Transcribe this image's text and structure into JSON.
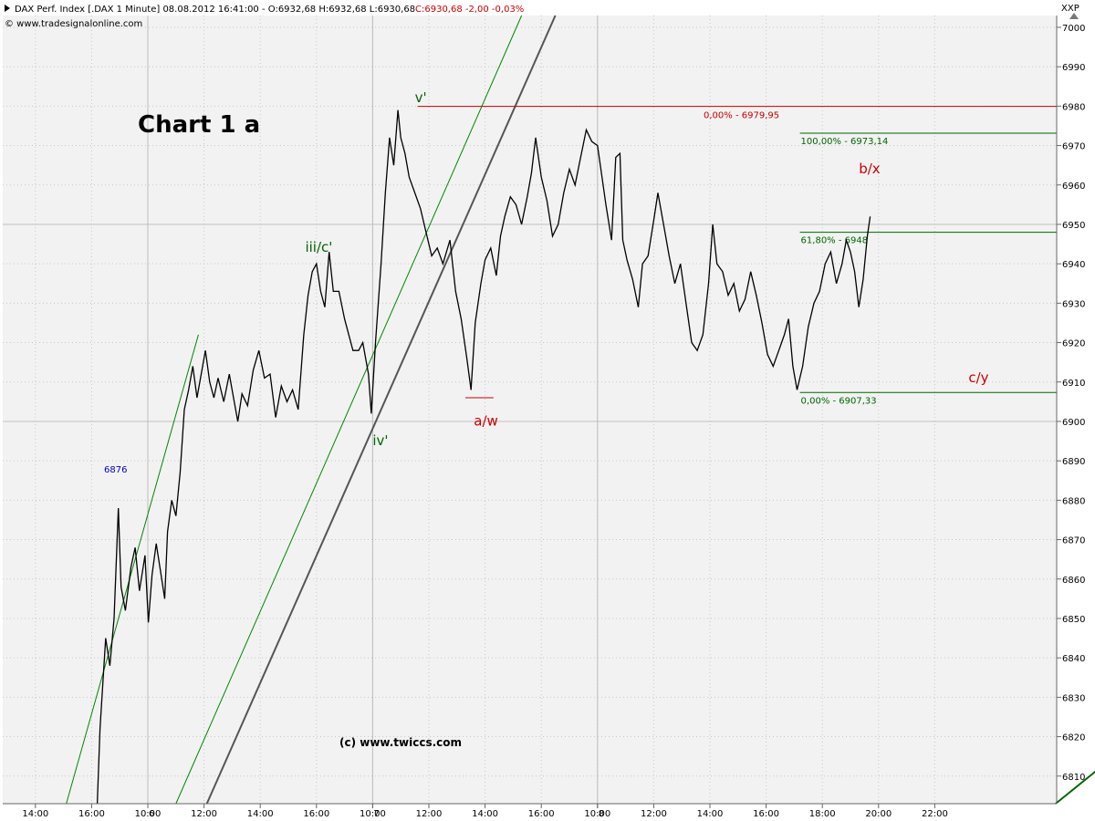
{
  "header": {
    "title_part": "DAX Perf. Index [.DAX  1 Minute] 08.08.2012 16:41:00 - O:6932,68 H:6932,68 L:6930,68",
    "close_part": "C:6930,68 -2,00 -0,03%",
    "source": "© www.tradesignalonline.com",
    "corner_label": "XXP"
  },
  "chart_title": "Chart 1 a",
  "copyright": "(c) www.twiccs.com",
  "side_note": "6876",
  "colors": {
    "background": "#f2f2f2",
    "price": "#000000",
    "grid": "#c8c8c8",
    "fib_red": "#cc0000",
    "fib_green": "#006600",
    "trend_gray": "#555555",
    "trend_green": "#008800"
  },
  "chart_data": {
    "type": "line",
    "symbol": ".DAX",
    "interval": "1 Minute",
    "ylim": [
      6803,
      7003
    ],
    "y_ticks": [
      6810,
      6820,
      6830,
      6840,
      6850,
      6860,
      6870,
      6880,
      6890,
      6900,
      6910,
      6920,
      6930,
      6940,
      6950,
      6960,
      6970,
      6980,
      6990,
      7000
    ],
    "x_labels": [
      "14:00",
      "16:00",
      "6",
      "10:00",
      "12:00",
      "14:00",
      "16:00",
      "7",
      "10:00",
      "12:00",
      "14:00",
      "16:00",
      "8",
      "10:00",
      "12:00",
      "14:00",
      "16:00",
      "18:00",
      "20:00",
      "22:00"
    ],
    "x_hours": [
      -10,
      -8,
      -6,
      -6,
      -4,
      -2,
      0,
      2,
      2,
      4,
      6,
      8,
      10,
      10,
      12,
      14,
      16,
      18,
      20,
      22
    ],
    "day_separators": [
      -6,
      2,
      10
    ],
    "price_path": [
      [
        -7.8,
        6803
      ],
      [
        -7.7,
        6822
      ],
      [
        -7.5,
        6845
      ],
      [
        -7.35,
        6838
      ],
      [
        -7.2,
        6850
      ],
      [
        -7.05,
        6878
      ],
      [
        -6.95,
        6858
      ],
      [
        -6.8,
        6852
      ],
      [
        -6.6,
        6863
      ],
      [
        -6.45,
        6868
      ],
      [
        -6.3,
        6857
      ],
      [
        -6.1,
        6866
      ],
      [
        -5.98,
        6849
      ],
      [
        -5.85,
        6861
      ],
      [
        -5.7,
        6869
      ],
      [
        -5.55,
        6862
      ],
      [
        -5.4,
        6855
      ],
      [
        -5.3,
        6872
      ],
      [
        -5.15,
        6880
      ],
      [
        -5.0,
        6876
      ],
      [
        -4.85,
        6887
      ],
      [
        -4.7,
        6903
      ],
      [
        -4.55,
        6908
      ],
      [
        -4.4,
        6914
      ],
      [
        -4.25,
        6906
      ],
      [
        -4.1,
        6912
      ],
      [
        -3.95,
        6918
      ],
      [
        -3.8,
        6910
      ],
      [
        -3.65,
        6906
      ],
      [
        -3.5,
        6911
      ],
      [
        -3.3,
        6905
      ],
      [
        -3.1,
        6912
      ],
      [
        -2.95,
        6906
      ],
      [
        -2.8,
        6900
      ],
      [
        -2.65,
        6907
      ],
      [
        -2.45,
        6904
      ],
      [
        -2.25,
        6913
      ],
      [
        -2.05,
        6918
      ],
      [
        -1.85,
        6911
      ],
      [
        -1.65,
        6912
      ],
      [
        -1.45,
        6901
      ],
      [
        -1.25,
        6909
      ],
      [
        -1.05,
        6905
      ],
      [
        -0.85,
        6908
      ],
      [
        -0.65,
        6903
      ],
      [
        -0.45,
        6922
      ],
      [
        -0.3,
        6932
      ],
      [
        -0.15,
        6938
      ],
      [
        0.0,
        6940
      ],
      [
        0.15,
        6933
      ],
      [
        0.3,
        6929
      ],
      [
        0.45,
        6943
      ],
      [
        0.6,
        6933
      ],
      [
        0.8,
        6933
      ],
      [
        1.0,
        6926
      ],
      [
        1.15,
        6922
      ],
      [
        1.3,
        6918
      ],
      [
        1.5,
        6918
      ],
      [
        1.65,
        6920
      ],
      [
        1.85,
        6912
      ],
      [
        1.95,
        6902
      ],
      [
        2.1,
        6920
      ],
      [
        2.3,
        6940
      ],
      [
        2.45,
        6958
      ],
      [
        2.6,
        6972
      ],
      [
        2.75,
        6965
      ],
      [
        2.9,
        6979
      ],
      [
        3.0,
        6972
      ],
      [
        3.15,
        6968
      ],
      [
        3.3,
        6962
      ],
      [
        3.5,
        6958
      ],
      [
        3.7,
        6954
      ],
      [
        3.9,
        6948
      ],
      [
        4.1,
        6942
      ],
      [
        4.3,
        6944
      ],
      [
        4.5,
        6940
      ],
      [
        4.75,
        6946
      ],
      [
        4.95,
        6933
      ],
      [
        5.15,
        6926
      ],
      [
        5.35,
        6916
      ],
      [
        5.5,
        6908
      ],
      [
        5.65,
        6925
      ],
      [
        5.85,
        6935
      ],
      [
        6.0,
        6941
      ],
      [
        6.2,
        6944
      ],
      [
        6.4,
        6937
      ],
      [
        6.55,
        6947
      ],
      [
        6.7,
        6952
      ],
      [
        6.9,
        6957
      ],
      [
        7.1,
        6955
      ],
      [
        7.3,
        6950
      ],
      [
        7.5,
        6957
      ],
      [
        7.65,
        6963
      ],
      [
        7.8,
        6972
      ],
      [
        8.0,
        6962
      ],
      [
        8.2,
        6956
      ],
      [
        8.4,
        6947
      ],
      [
        8.6,
        6950
      ],
      [
        8.8,
        6958
      ],
      [
        9.0,
        6964
      ],
      [
        9.2,
        6960
      ],
      [
        9.4,
        6967
      ],
      [
        9.6,
        6974
      ],
      [
        9.8,
        6971
      ],
      [
        10.0,
        6970
      ],
      [
        10.1,
        6965
      ],
      [
        10.3,
        6955
      ],
      [
        10.5,
        6946
      ],
      [
        10.65,
        6967
      ],
      [
        10.8,
        6968
      ],
      [
        10.9,
        6946
      ],
      [
        11.05,
        6941
      ],
      [
        11.25,
        6936
      ],
      [
        11.45,
        6929
      ],
      [
        11.6,
        6940
      ],
      [
        11.8,
        6942
      ],
      [
        12.0,
        6951
      ],
      [
        12.15,
        6958
      ],
      [
        12.35,
        6950
      ],
      [
        12.55,
        6942
      ],
      [
        12.75,
        6935
      ],
      [
        12.95,
        6940
      ],
      [
        13.15,
        6930
      ],
      [
        13.35,
        6920
      ],
      [
        13.55,
        6918
      ],
      [
        13.75,
        6922
      ],
      [
        13.95,
        6935
      ],
      [
        14.1,
        6950
      ],
      [
        14.25,
        6940
      ],
      [
        14.45,
        6938
      ],
      [
        14.65,
        6932
      ],
      [
        14.85,
        6935
      ],
      [
        15.05,
        6928
      ],
      [
        15.25,
        6931
      ],
      [
        15.45,
        6938
      ],
      [
        15.65,
        6932
      ],
      [
        15.85,
        6925
      ],
      [
        16.05,
        6917
      ],
      [
        16.25,
        6914
      ],
      [
        16.45,
        6918
      ],
      [
        16.65,
        6922
      ],
      [
        16.8,
        6926
      ],
      [
        16.95,
        6914
      ],
      [
        17.1,
        6908
      ],
      [
        17.3,
        6914
      ],
      [
        17.5,
        6924
      ],
      [
        17.7,
        6930
      ],
      [
        17.9,
        6933
      ],
      [
        18.1,
        6940
      ],
      [
        18.3,
        6943
      ],
      [
        18.5,
        6935
      ],
      [
        18.7,
        6940
      ],
      [
        18.85,
        6946
      ],
      [
        19.0,
        6943
      ],
      [
        19.15,
        6938
      ],
      [
        19.3,
        6929
      ],
      [
        19.45,
        6936
      ],
      [
        19.6,
        6947
      ],
      [
        19.7,
        6952
      ]
    ],
    "wave_labels": [
      {
        "text": "v'",
        "x": 3.5,
        "y": 6981,
        "color": "green"
      },
      {
        "text": "iii/c'",
        "x": -0.4,
        "y": 6943,
        "color": "green"
      },
      {
        "text": "iv'",
        "x": 2.0,
        "y": 6894,
        "color": "green"
      },
      {
        "text": "a/w",
        "x": 5.6,
        "y": 6899,
        "color": "red"
      },
      {
        "text": "b/x",
        "x": 19.3,
        "y": 6963,
        "color": "red"
      },
      {
        "text": "c/y",
        "x": 23.2,
        "y": 6910,
        "color": "red"
      }
    ],
    "fib_levels": [
      {
        "label": "0,00% - 6979,95",
        "price": 6979.95,
        "from": 3.6,
        "color": "red"
      },
      {
        "label": "100,00% - 6973,14",
        "price": 6973.14,
        "from": 17.2,
        "color": "green"
      },
      {
        "label": "61,80% - 6948",
        "price": 6948,
        "from": 17.2,
        "color": "green"
      },
      {
        "label": "0,00% - 6907,33",
        "price": 6907.33,
        "from": 17.2,
        "color": "green"
      }
    ],
    "trend_lines": [
      {
        "color": "gray",
        "from": [
          -3.9,
          6803
        ],
        "to": [
          8.5,
          7003
        ]
      },
      {
        "color": "green",
        "from": [
          -8.9,
          6803
        ],
        "to": [
          -4.2,
          6922
        ]
      },
      {
        "color": "green",
        "from": [
          -5.0,
          6803
        ],
        "to": [
          7.3,
          7003
        ]
      },
      {
        "color": "darkgreen",
        "from": [
          26.3,
          6803
        ],
        "to": [
          29.6,
          6822
        ]
      }
    ],
    "low_marker": {
      "price": 6906,
      "from": 5.3,
      "to": 6.3
    }
  }
}
